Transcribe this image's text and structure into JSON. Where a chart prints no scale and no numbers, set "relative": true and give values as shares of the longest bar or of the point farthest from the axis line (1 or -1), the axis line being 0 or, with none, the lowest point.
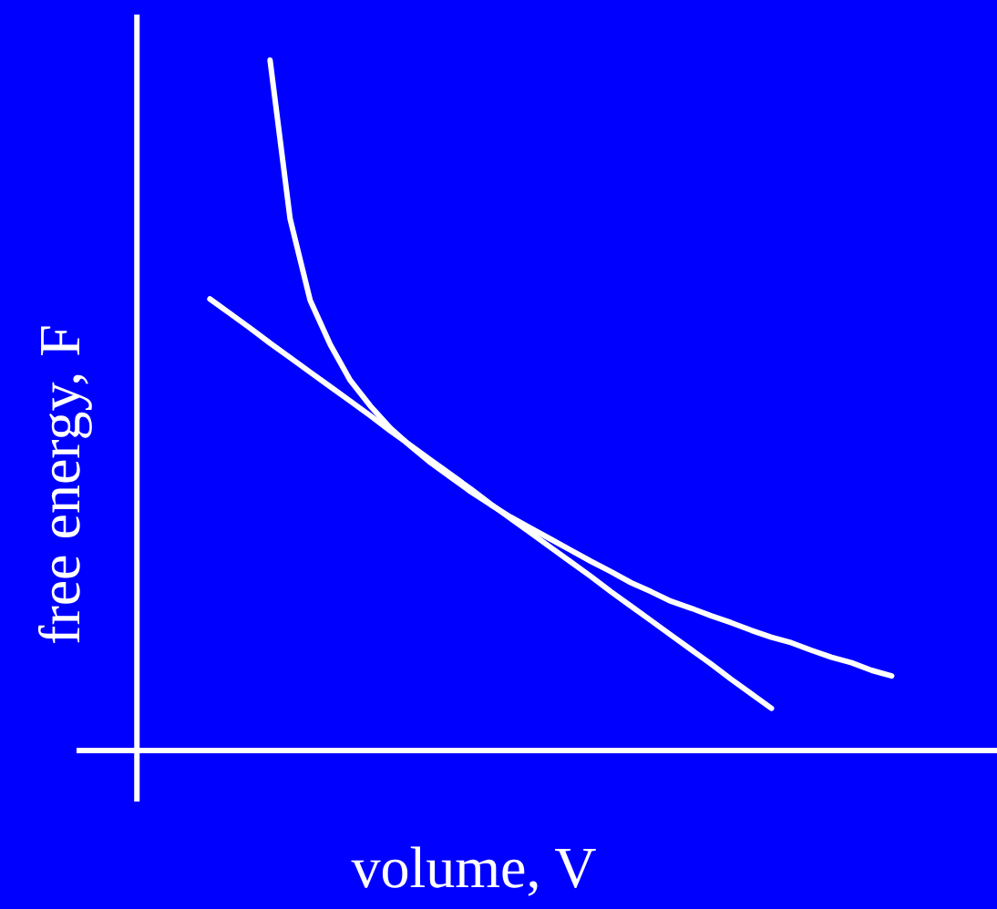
{
  "chart_data": {
    "type": "line",
    "relative": true,
    "xlabel": "volume, V",
    "ylabel": "free energy, F",
    "categories": [
      null,
      null,
      null,
      null,
      null,
      null,
      null,
      null,
      null,
      null,
      null,
      null,
      null,
      null,
      null,
      null,
      null,
      null,
      null,
      null,
      null,
      null,
      null,
      null,
      null,
      null,
      null,
      null,
      null,
      null,
      null,
      null,
      null,
      null,
      null
    ],
    "series": [
      {
        "color": "#ffffff",
        "values": [
          null,
          null,
          null,
          1.0,
          0.77,
          0.652,
          0.588,
          0.536,
          0.499,
          0.467,
          0.441,
          0.417,
          0.396,
          0.375,
          0.356,
          0.338,
          0.322,
          0.306,
          0.29,
          0.274,
          0.259,
          0.243,
          0.23,
          0.216,
          0.206,
          0.195,
          0.185,
          0.174,
          0.164,
          0.156,
          0.145,
          0.135,
          0.127,
          0.116,
          0.108
        ]
      },
      {
        "color": "#ffffff",
        "values": [
          0.654,
          0.633,
          0.612,
          0.59,
          0.569,
          0.548,
          0.527,
          0.506,
          0.485,
          0.463,
          0.442,
          0.421,
          0.4,
          0.379,
          0.357,
          0.336,
          0.315,
          0.294,
          0.273,
          0.252,
          0.23,
          0.209,
          0.188,
          0.167,
          0.146,
          0.125,
          0.103,
          0.082,
          0.061,
          null,
          null,
          null,
          null,
          null,
          null
        ]
      }
    ]
  }
}
